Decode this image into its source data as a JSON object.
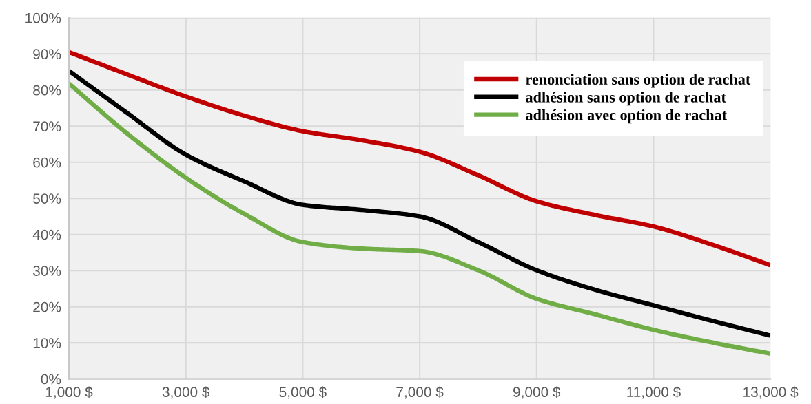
{
  "chart_data": {
    "type": "line",
    "x": [
      1000,
      2000,
      3000,
      4000,
      5000,
      6000,
      7000,
      8000,
      9000,
      10000,
      11000,
      12000,
      13000
    ],
    "series": [
      {
        "name": "renonciation sans option de rachat",
        "color": "#c00000",
        "values": [
          90.5,
          84.3,
          78.2,
          72.9,
          68.6,
          66.1,
          62.9,
          56.4,
          49.2,
          45.4,
          42.2,
          37.2,
          31.5
        ]
      },
      {
        "name": "adhésion sans option de rachat",
        "color": "#000000",
        "values": [
          85.3,
          73.6,
          62.1,
          54.7,
          48.2,
          46.8,
          45.0,
          37.9,
          30.1,
          24.7,
          20.4,
          16.1,
          12.0
        ]
      },
      {
        "name": "adhésion avec option de rachat",
        "color": "#70ad47",
        "values": [
          81.8,
          67.9,
          55.7,
          45.7,
          37.9,
          36.1,
          35.4,
          30.1,
          22.2,
          17.9,
          13.6,
          10.1,
          7.0
        ]
      }
    ],
    "xlim": [
      1000,
      13000
    ],
    "xticks": [
      {
        "value": 1000,
        "label": "1,000 $"
      },
      {
        "value": 3000,
        "label": "3,000 $"
      },
      {
        "value": 5000,
        "label": "5,000 $"
      },
      {
        "value": 7000,
        "label": "7,000 $"
      },
      {
        "value": 9000,
        "label": "9,000 $"
      },
      {
        "value": 11000,
        "label": "11,000 $"
      },
      {
        "value": 13000,
        "label": "13,000 $"
      }
    ],
    "ylim": [
      0,
      100
    ],
    "yticks": [
      {
        "value": 0,
        "label": "0%"
      },
      {
        "value": 10,
        "label": "10%"
      },
      {
        "value": 20,
        "label": "20%"
      },
      {
        "value": 30,
        "label": "30%"
      },
      {
        "value": 40,
        "label": "40%"
      },
      {
        "value": 50,
        "label": "50%"
      },
      {
        "value": 60,
        "label": "60%"
      },
      {
        "value": 70,
        "label": "70%"
      },
      {
        "value": 80,
        "label": "80%"
      },
      {
        "value": 90,
        "label": "90%"
      },
      {
        "value": 100,
        "label": "100%"
      }
    ],
    "grid": true,
    "legend": "top right",
    "line_style": "solid"
  }
}
